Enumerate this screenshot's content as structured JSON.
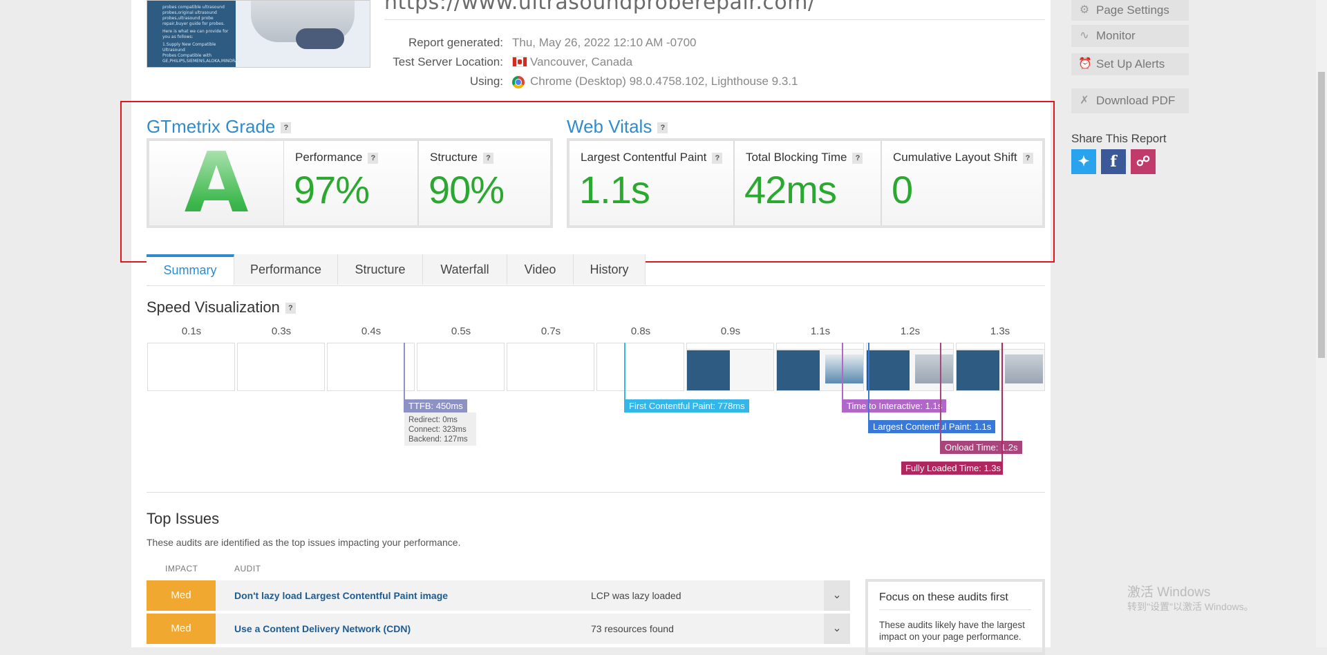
{
  "header": {
    "url": "https://www.ultrasoundprobe­repair.com/",
    "thumbnail_lines": [
      "probes compatible ultrasound",
      "probes,original ultrasound",
      "probes,ultrasound probe",
      "repair,buyer guide for probes.",
      "Here is what we can provide for",
      "you as follows:",
      "1.Supply New Compatible Ultrasound",
      "Probes Compatible with",
      "GE,PHILIPS,SIEMENS,ALOKA,MINDRAY"
    ],
    "report_generated_label": "Report generated:",
    "report_generated_value": "Thu, May 26, 2022 12:10 AM -0700",
    "server_location_label": "Test Server Location:",
    "server_location_value": "Vancouver, Canada",
    "using_label": "Using:",
    "using_value": "Chrome (Desktop) 98.0.4758.102, Lighthouse 9.3.1"
  },
  "grade": {
    "title": "GTmetrix Grade",
    "help": "?",
    "letter": "A",
    "performance_label": "Performance",
    "performance_value": "97%",
    "structure_label": "Structure",
    "structure_value": "90%"
  },
  "vitals": {
    "title": "Web Vitals",
    "help": "?",
    "lcp_label": "Largest Contentful Paint",
    "lcp_value": "1.1s",
    "tbt_label": "Total Blocking Time",
    "tbt_value": "42ms",
    "cls_label": "Cumulative Layout Shift",
    "cls_value": "0"
  },
  "tabs": [
    "Summary",
    "Performance",
    "Structure",
    "Waterfall",
    "Video",
    "History"
  ],
  "speed": {
    "title": "Speed Visualization",
    "help": "?",
    "ticks": [
      "0.1s",
      "0.3s",
      "0.4s",
      "0.5s",
      "0.7s",
      "0.8s",
      "0.9s",
      "1.1s",
      "1.2s",
      "1.3s"
    ],
    "markers": {
      "ttfb": "TTFB: 450ms",
      "ttfb_redirect": "Redirect: 0ms",
      "ttfb_connect": "Connect: 323ms",
      "ttfb_backend": "Backend: 127ms",
      "fcp": "First Contentful Paint: 778ms",
      "tti": "Time to Interactive: 1.1s",
      "lcp": "Largest Contentful Paint: 1.1s",
      "onload": "Onload Time: 1.2s",
      "fully_loaded": "Fully Loaded Time: 1.3s"
    },
    "colors": {
      "ttfb": "#8c93c4",
      "fcp": "#33b6e8",
      "tti": "#b067c8",
      "lcp": "#3a78d8",
      "onload": "#a8457c",
      "fully_loaded": "#b0265e"
    }
  },
  "top_issues": {
    "title": "Top Issues",
    "description": "These audits are identified as the top issues impacting your performance.",
    "col_impact": "IMPACT",
    "col_audit": "AUDIT",
    "rows": [
      {
        "impact": "Med",
        "audit": "Don't lazy load Largest Contentful Paint image",
        "result": "LCP was lazy loaded"
      },
      {
        "impact": "Med",
        "audit": "Use a Content Delivery Network (CDN)",
        "result": "73 resources found"
      }
    ],
    "focus_title": "Focus on these audits first",
    "focus_desc": "These audits likely have the largest impact on your page performance."
  },
  "sidebar": {
    "page_settings": "Page Settings",
    "monitor": "Monitor",
    "set_up_alerts": "Set Up Alerts",
    "download_pdf": "Download PDF",
    "share_title": "Share This Report"
  },
  "watermark": {
    "line1": "激活 Windows",
    "line2": "转到\"设置\"以激活 Windows。"
  }
}
